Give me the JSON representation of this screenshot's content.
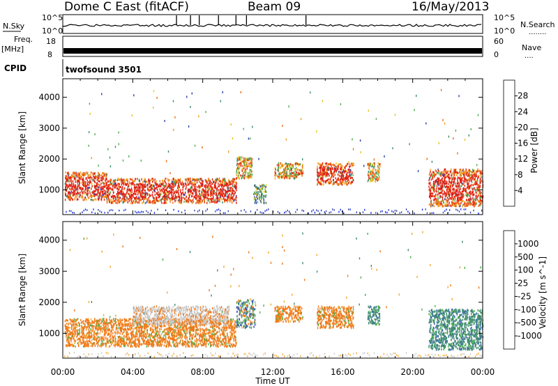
{
  "header": {
    "station": "Dome C East (fitACF)",
    "beam": "Beam 09",
    "date": "16/May/2013"
  },
  "strip_panels": {
    "nsky": {
      "left_label": "N.Sky",
      "left_ticks": [
        "10^5",
        "10^0"
      ],
      "right_label": "N.Search",
      "right_ticks": [
        "10^5",
        "10^0"
      ],
      "right_dots": "........"
    },
    "freq": {
      "left_label": "Freq.",
      "left_unit": "[MHz]",
      "left_ticks": [
        "18",
        "8"
      ],
      "right_label": "Nave",
      "right_ticks": [
        "60",
        "0"
      ],
      "right_dots": "...."
    },
    "cpid": {
      "left_label": "CPID",
      "program": "twofsound 3501"
    }
  },
  "chart_data": [
    {
      "type": "heatmap",
      "name": "power",
      "ylabel": "Slant Range [km]",
      "yticks": [
        "1000",
        "2000",
        "3000",
        "4000"
      ],
      "ylim": [
        200,
        4600
      ],
      "xlim": [
        0,
        24
      ],
      "colorbar": {
        "label": "Power [dB]",
        "ticks": [
          "4",
          "8",
          "12",
          "16",
          "20",
          "24",
          "28"
        ],
        "colors": [
          "#0a1ff0",
          "#2b3fae",
          "#3e8f6a",
          "#4fb04a",
          "#e6c31c",
          "#f29a1a",
          "#f06a12",
          "#e02010"
        ]
      },
      "regions": [
        {
          "t0": 0.1,
          "t1": 2.5,
          "r0": 700,
          "r1": 1600,
          "level": "high"
        },
        {
          "t0": 2.5,
          "t1": 9.9,
          "r0": 600,
          "r1": 1400,
          "level": "high"
        },
        {
          "t0": 9.9,
          "t1": 10.8,
          "r0": 1400,
          "r1": 2100,
          "level": "mid"
        },
        {
          "t0": 10.9,
          "t1": 11.6,
          "r0": 600,
          "r1": 1200,
          "level": "low"
        },
        {
          "t0": 12.1,
          "t1": 13.7,
          "r0": 1400,
          "r1": 1900,
          "level": "mid"
        },
        {
          "t0": 14.5,
          "t1": 16.6,
          "r0": 1200,
          "r1": 1900,
          "level": "high"
        },
        {
          "t0": 17.4,
          "t1": 18.1,
          "r0": 1300,
          "r1": 1900,
          "level": "mid"
        },
        {
          "t0": 20.9,
          "t1": 24.0,
          "r0": 500,
          "r1": 1700,
          "level": "high"
        }
      ]
    },
    {
      "type": "heatmap",
      "name": "velocity",
      "ylabel": "Slant Range [km]",
      "xlabel": "Time UT",
      "xticks": [
        "00:00",
        "04:00",
        "08:00",
        "12:00",
        "16:00",
        "20:00",
        "00:00"
      ],
      "yticks": [
        "1000",
        "2000",
        "3000",
        "4000"
      ],
      "ylim": [
        200,
        4600
      ],
      "xlim": [
        0,
        24
      ],
      "colorbar": {
        "label": "Velocity [m s^-1]",
        "ticks": [
          "1000",
          "500",
          "100",
          "25",
          "-25",
          "-100",
          "-500",
          "-1000"
        ],
        "colors": [
          "#2140b8",
          "#3d6eae",
          "#3f8a6e",
          "#48b04a",
          "#c8c8c8",
          "#f6a62a",
          "#f07818",
          "#ee3a12",
          "#e01010"
        ]
      },
      "regions": [
        {
          "t0": 0.1,
          "t1": 9.9,
          "r0": 600,
          "r1": 1500,
          "level": "neg"
        },
        {
          "t0": 4.0,
          "t1": 9.5,
          "r0": 1300,
          "r1": 1900,
          "level": "zero"
        },
        {
          "t0": 9.9,
          "t1": 11.0,
          "r0": 1200,
          "r1": 2100,
          "level": "mixed"
        },
        {
          "t0": 12.1,
          "t1": 13.7,
          "r0": 1400,
          "r1": 1900,
          "level": "neg"
        },
        {
          "t0": 14.5,
          "t1": 16.6,
          "r0": 1200,
          "r1": 1900,
          "level": "neg"
        },
        {
          "t0": 17.4,
          "t1": 18.1,
          "r0": 1300,
          "r1": 1900,
          "level": "pos"
        },
        {
          "t0": 20.9,
          "t1": 24.0,
          "r0": 500,
          "r1": 1800,
          "level": "pos"
        }
      ]
    }
  ]
}
